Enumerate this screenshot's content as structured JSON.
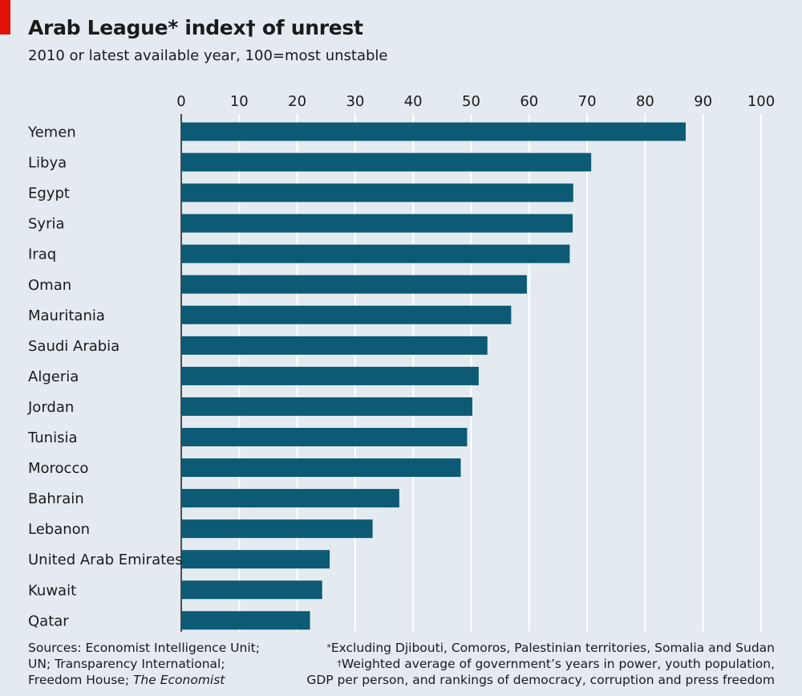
{
  "header": {
    "title": "Arab League* index† of unrest",
    "subtitle": "2010 or latest available year, 100=most unstable"
  },
  "chart_data": {
    "type": "bar",
    "orientation": "horizontal",
    "title": "Arab League* index† of unrest",
    "subtitle": "2010 or latest available year, 100=most unstable",
    "xlim": [
      0,
      100
    ],
    "xticks": [
      0,
      10,
      20,
      30,
      40,
      50,
      60,
      70,
      80,
      90,
      100
    ],
    "grid": true,
    "categories": [
      "Yemen",
      "Libya",
      "Egypt",
      "Syria",
      "Iraq",
      "Oman",
      "Mauritania",
      "Saudi Arabia",
      "Algeria",
      "Jordan",
      "Tunisia",
      "Morocco",
      "Bahrain",
      "Lebanon",
      "United Arab Emirates",
      "Kuwait",
      "Qatar"
    ],
    "values": [
      87,
      70.7,
      67.6,
      67.5,
      67,
      59.6,
      56.9,
      52.8,
      51.3,
      50.2,
      49.3,
      48.2,
      37.6,
      33,
      25.6,
      24.3,
      22.2
    ],
    "bar_color": "#0d5a75"
  },
  "footer": {
    "sources_line1": "Sources: Economist Intelligence Unit;",
    "sources_line2": "UN; Transparency International;",
    "sources_line3_prefix": "Freedom House; ",
    "sources_line3_italic": "The Economist",
    "footnote1_symbol": "*",
    "footnote1_text": "Excluding Djibouti, Comoros, Palestinian territories, Somalia and Sudan",
    "footnote2_symbol": "†",
    "footnote2_text": "Weighted average of government’s years in power, youth population,",
    "footnote2_line2": "GDP per person, and rankings of democracy, corruption and press freedom"
  }
}
